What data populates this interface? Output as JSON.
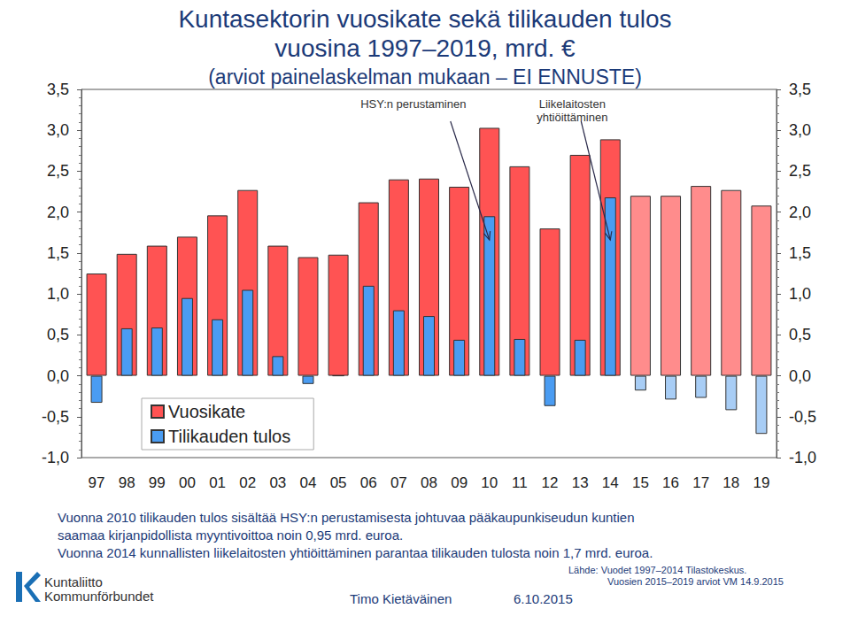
{
  "chart_data": {
    "type": "bar",
    "title": "Kuntasektorin vuosikate sekä tilikauden tulos\nvuosina 1997–2019, mrd. €",
    "subtitle": "(arviot painelaskelman mukaan – EI ENNUSTE)",
    "categories": [
      "97",
      "98",
      "99",
      "00",
      "01",
      "02",
      "03",
      "04",
      "05",
      "06",
      "07",
      "08",
      "09",
      "10",
      "11",
      "12",
      "13",
      "14",
      "15",
      "16",
      "17",
      "18",
      "19"
    ],
    "series": [
      {
        "name": "Vuosikate",
        "type": "bar",
        "values": [
          1.25,
          1.49,
          1.59,
          1.7,
          1.96,
          2.27,
          1.59,
          1.45,
          1.48,
          2.12,
          2.4,
          2.41,
          2.31,
          3.03,
          2.56,
          1.8,
          2.7,
          2.89,
          2.2,
          2.2,
          2.32,
          2.27,
          2.08
        ],
        "colors": [
          "#ff5353",
          "#ff5353",
          "#ff5353",
          "#ff5353",
          "#ff5353",
          "#ff5353",
          "#ff5353",
          "#ff5353",
          "#ff5353",
          "#ff5353",
          "#ff5353",
          "#ff5353",
          "#ff5353",
          "#ff5353",
          "#ff5353",
          "#ff5353",
          "#ff5353",
          "#ff5353",
          "#ff8c8c",
          "#ff8c8c",
          "#ff8c8c",
          "#ff8c8c",
          "#ff8c8c"
        ]
      },
      {
        "name": "Tilikauden tulos",
        "type": "bar",
        "values": [
          -0.33,
          0.58,
          0.59,
          0.95,
          0.69,
          1.05,
          0.24,
          -0.1,
          0,
          1.1,
          0.8,
          0.73,
          0.44,
          1.95,
          0.45,
          -0.37,
          0.44,
          2.18,
          -0.18,
          -0.29,
          -0.27,
          -0.42,
          -0.71
        ],
        "colors": [
          "#4a9cf2",
          "#4a9cf2",
          "#4a9cf2",
          "#4a9cf2",
          "#4a9cf2",
          "#4a9cf2",
          "#4a9cf2",
          "#4a9cf2",
          "#4a9cf2",
          "#4a9cf2",
          "#4a9cf2",
          "#4a9cf2",
          "#4a9cf2",
          "#4a9cf2",
          "#4a9cf2",
          "#4a9cf2",
          "#4a9cf2",
          "#4a9cf2",
          "#a8cdf5",
          "#a8cdf5",
          "#a8cdf5",
          "#a8cdf5",
          "#a8cdf5"
        ]
      }
    ],
    "ylim": [
      -1,
      3.5
    ],
    "yticks": [
      {
        "value": -1,
        "label": "-1,0"
      },
      {
        "value": -0.5,
        "label": "-0,5"
      },
      {
        "value": 0,
        "label": "0,0"
      },
      {
        "value": 0.5,
        "label": "0,5"
      },
      {
        "value": 1,
        "label": "1,0"
      },
      {
        "value": 1.5,
        "label": "1,5"
      },
      {
        "value": 2,
        "label": "2,0"
      },
      {
        "value": 2.5,
        "label": "2,5"
      },
      {
        "value": 3,
        "label": "3,0"
      },
      {
        "value": 3.5,
        "label": "3,5"
      }
    ],
    "grid": false,
    "legend": "lower-left",
    "annotations": [
      {
        "text": "HSY:n perustaminen",
        "category": "10",
        "value": 1.66
      },
      {
        "text": "Liikelaitosten\nyhtiöittäminen",
        "category": "14",
        "value": 1.66
      }
    ],
    "notes": [
      "Vuonna 2010 tilikauden tulos sisältää HSY:n perustamisesta johtuvaa pääkaupunkiseudun kuntien",
      "saamaa kirjanpidollista myyntivoittoa noin 0,95 mrd. euroa.",
      "Vuonna 2014 kunnallisten liikelaitosten yhtiöittäminen parantaa tilikauden tulosta noin 1,7 mrd. euroa."
    ],
    "source": [
      "Lähde: Vuodet 1997–2014 Tilastokeskus.",
      "Vuosien 2015–2019 arviot VM 14.9.2015"
    ],
    "author": "Timo Kietäväinen",
    "date": "6.10.2015",
    "logo": [
      "Kuntaliitto",
      "Kommunförbundet"
    ]
  }
}
